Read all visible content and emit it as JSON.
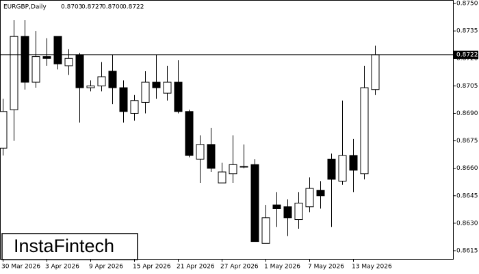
{
  "chart_data": {
    "type": "candlestick",
    "title": "EURGBP,Daily",
    "header_values": [
      "0.8703",
      "0.8727",
      "0.8700",
      "0.8722"
    ],
    "brand": "InstaFintech",
    "categories": [
      "30 Mar 2026",
      null,
      null,
      null,
      "3 Apr 2026",
      null,
      null,
      null,
      "9 Apr 2026",
      null,
      null,
      null,
      "15 Apr 2026",
      null,
      null,
      null,
      "21 Apr 2026",
      null,
      null,
      null,
      "27 Apr 2026",
      null,
      null,
      null,
      "1 May 2026",
      null,
      null,
      null,
      "7 May 2026",
      null,
      null,
      null,
      "13 May 2026",
      null,
      null
    ],
    "open": [
      0.8671,
      0.8692,
      0.8732,
      0.8707,
      0.8721,
      0.8732,
      0.8716,
      0.8722,
      0.8704,
      0.8705,
      0.8713,
      0.8704,
      0.869,
      0.8696,
      0.8707,
      0.8701,
      0.8707,
      0.8691,
      0.8665,
      0.8673,
      0.8652,
      0.8657,
      0.8661,
      0.8662,
      0.8619,
      0.864,
      0.8639,
      0.8632,
      0.8639,
      0.8648,
      0.8665,
      0.8653,
      0.8667,
      0.8657,
      0.8703
    ],
    "high": [
      0.8698,
      0.8741,
      0.8741,
      0.8735,
      0.8731,
      0.8732,
      0.8725,
      0.8723,
      0.8708,
      0.8718,
      0.8722,
      0.8708,
      0.87,
      0.8713,
      0.8722,
      0.8716,
      0.8719,
      0.8692,
      0.8678,
      0.8682,
      0.8663,
      0.8678,
      0.8673,
      0.8665,
      0.864,
      0.8647,
      0.8643,
      0.8647,
      0.8655,
      0.8653,
      0.8668,
      0.8697,
      0.8676,
      0.8716,
      0.8727
    ],
    "low": [
      0.8667,
      0.8675,
      0.8703,
      0.8704,
      0.8716,
      0.8714,
      0.8711,
      0.8685,
      0.8702,
      0.8702,
      0.8695,
      0.8685,
      0.8686,
      0.869,
      0.8698,
      0.8697,
      0.869,
      0.8666,
      0.8652,
      0.8658,
      0.8652,
      0.8652,
      0.866,
      0.862,
      0.8619,
      0.8628,
      0.8623,
      0.8627,
      0.8636,
      0.8638,
      0.8628,
      0.8651,
      0.8647,
      0.8654,
      0.87
    ],
    "close": [
      0.8691,
      0.8732,
      0.8707,
      0.8721,
      0.872,
      0.8717,
      0.872,
      0.8704,
      0.8705,
      0.871,
      0.8704,
      0.8691,
      0.8697,
      0.8707,
      0.8704,
      0.8707,
      0.8691,
      0.8667,
      0.8673,
      0.866,
      0.8658,
      0.8662,
      0.8661,
      0.862,
      0.8633,
      0.8638,
      0.8633,
      0.8641,
      0.8649,
      0.8645,
      0.8654,
      0.8667,
      0.8659,
      0.8704,
      0.8722
    ],
    "up_color": "#ffffff",
    "down_color": "#000000",
    "ylim": [
      0.86105,
      0.87519
    ],
    "yticks": [
      {
        "value": 0.875,
        "label": "0.8750"
      },
      0.8735,
      {
        "value": 0.872,
        "label": "0.8720"
      },
      0.8705,
      {
        "value": 0.869,
        "label": "0.8690"
      },
      0.8675,
      {
        "value": 0.866,
        "label": "0.8660"
      },
      0.8645,
      {
        "value": 0.863,
        "label": "0.8630"
      },
      0.8615
    ],
    "current_price": {
      "value": 0.8722,
      "label": "0.8722"
    }
  }
}
